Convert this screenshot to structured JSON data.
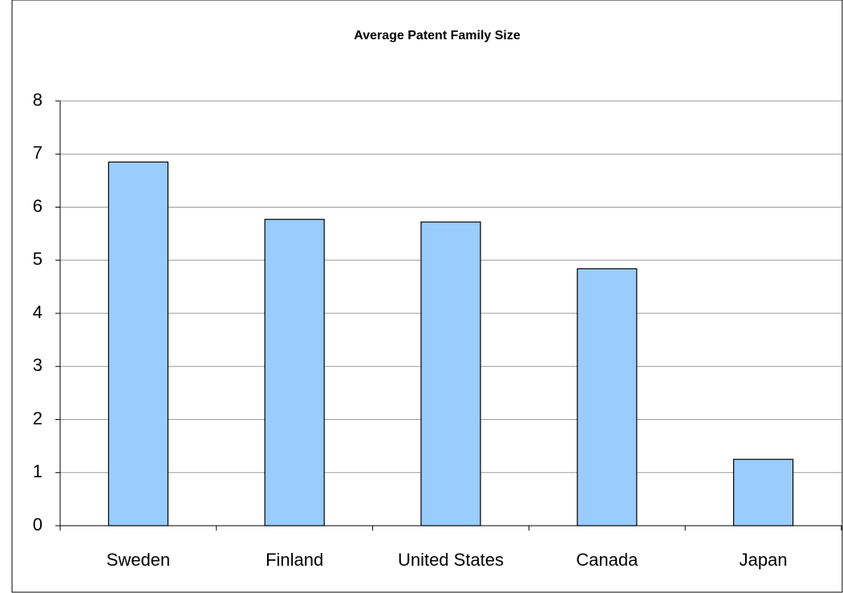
{
  "chart_data": {
    "type": "bar",
    "title": "Average Patent Family Size",
    "categories": [
      "Sweden",
      "Finland",
      "United States",
      "Canada",
      "Japan"
    ],
    "values": [
      6.85,
      5.77,
      5.72,
      4.84,
      1.25
    ],
    "color": "#99ccff",
    "ylim": [
      0,
      8
    ],
    "yticks": [
      0,
      1,
      2,
      3,
      4,
      5,
      6,
      7,
      8
    ],
    "grid": true
  }
}
